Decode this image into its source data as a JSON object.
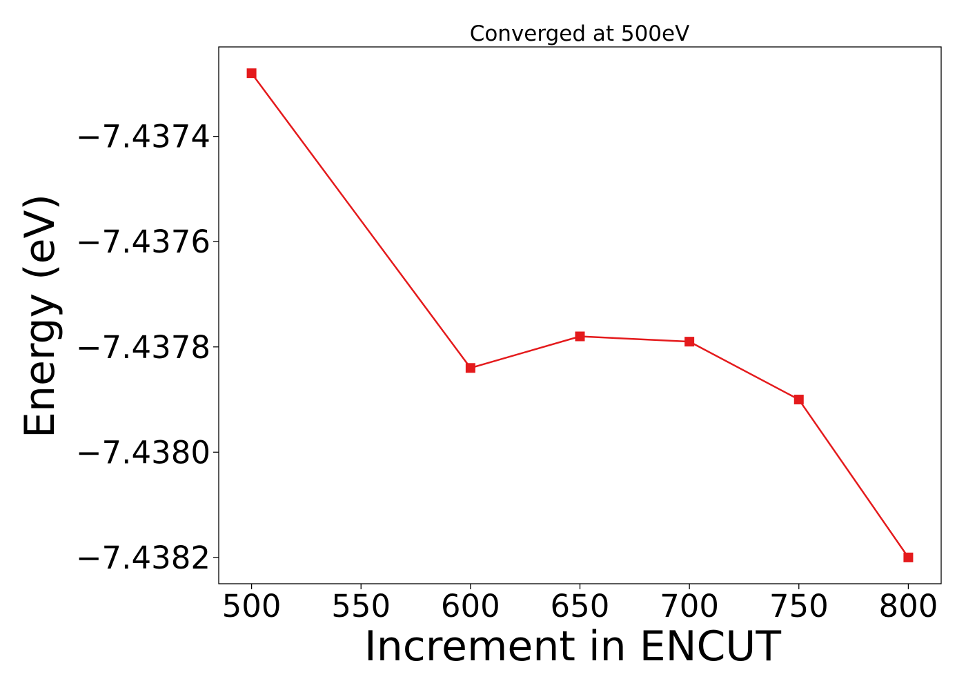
{
  "chart_data": {
    "type": "line",
    "title": "Converged at 500eV",
    "xlabel": "Increment in ENCUT",
    "ylabel": "Energy (eV)",
    "x": [
      500,
      600,
      650,
      700,
      750,
      800
    ],
    "series": [
      {
        "values": [
          -7.43728,
          -7.43784,
          -7.43778,
          -7.43779,
          -7.4379,
          -7.4382
        ],
        "color": "#e41a1c",
        "marker": "square"
      }
    ],
    "xlim": [
      485,
      815
    ],
    "ylim": [
      -7.43825,
      -7.43723
    ],
    "xticks": [
      500,
      550,
      600,
      650,
      700,
      750,
      800
    ],
    "xtick_labels": [
      "500",
      "550",
      "600",
      "650",
      "700",
      "750",
      "800"
    ],
    "yticks": [
      -7.4374,
      -7.4376,
      -7.4378,
      -7.438,
      -7.4382
    ],
    "ytick_labels": [
      "−7.4374",
      "−7.4376",
      "−7.4378",
      "−7.4380",
      "−7.4382"
    ],
    "grid": false,
    "legend": "none"
  }
}
